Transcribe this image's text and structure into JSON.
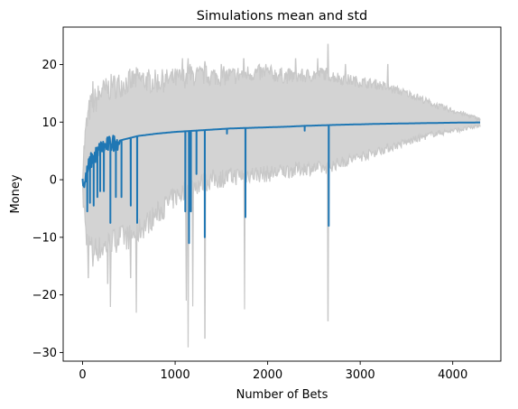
{
  "chart_data": {
    "type": "line",
    "title": "Simulations mean and std",
    "xlabel": "Number of Bets",
    "ylabel": "Money",
    "xlim": [
      -210,
      4520
    ],
    "ylim": [
      -31.5,
      26.5
    ],
    "xticks": [
      0,
      1000,
      2000,
      3000,
      4000
    ],
    "xtick_labels": [
      "0",
      "1000",
      "2000",
      "3000",
      "4000"
    ],
    "yticks": [
      -30,
      -20,
      -10,
      0,
      10,
      20
    ],
    "ytick_labels": [
      "−30",
      "−20",
      "−10",
      "0",
      "10",
      "20"
    ],
    "grid": false,
    "colors": {
      "mean": "#1f77b4",
      "band_fill": "#d3d3d3",
      "band_edge": "#c8c8c8"
    },
    "band": {
      "x": [
        0,
        20,
        40,
        60,
        80,
        100,
        150,
        200,
        300,
        400,
        500,
        600,
        800,
        1000,
        1200,
        1400,
        1600,
        1800,
        2000,
        2200,
        2400,
        2600,
        2800,
        3000,
        3200,
        3400,
        3600,
        3800,
        4000,
        4200,
        4300
      ],
      "upper": [
        2,
        6,
        9,
        11,
        12.5,
        13,
        14,
        15,
        16,
        16.5,
        17,
        17.5,
        17,
        17.5,
        18,
        18,
        18,
        18.5,
        18.5,
        18,
        18,
        18.5,
        17.5,
        17,
        16.5,
        15.5,
        14.5,
        13,
        12,
        11,
        10.5
      ],
      "lower": [
        -2,
        -6,
        -10,
        -11,
        -11.5,
        -12,
        -12,
        -12,
        -11,
        -10,
        -10,
        -9,
        -6,
        -3,
        -1,
        0,
        0.5,
        1,
        1,
        1.5,
        2,
        2,
        3,
        4,
        5,
        6,
        7,
        8,
        8.5,
        9,
        9.5
      ],
      "spikes_up": [
        [
          60,
          12
        ],
        [
          110,
          17
        ],
        [
          210,
          16
        ],
        [
          330,
          17
        ],
        [
          520,
          16
        ],
        [
          710,
          18
        ],
        [
          870,
          18
        ],
        [
          1080,
          21
        ],
        [
          1140,
          21
        ],
        [
          1160,
          20
        ],
        [
          1320,
          20.5
        ],
        [
          1500,
          20
        ],
        [
          1740,
          21
        ],
        [
          1980,
          20
        ],
        [
          2300,
          21
        ],
        [
          2540,
          21
        ],
        [
          2650,
          23.5
        ],
        [
          2840,
          20
        ],
        [
          3300,
          20
        ]
      ],
      "spikes_down": [
        [
          60,
          -17
        ],
        [
          110,
          -15
        ],
        [
          270,
          -18
        ],
        [
          300,
          -22
        ],
        [
          520,
          -17
        ],
        [
          580,
          -23
        ],
        [
          1120,
          -21
        ],
        [
          1140,
          -29
        ],
        [
          1190,
          -22
        ],
        [
          1320,
          -27.5
        ],
        [
          1750,
          -22.5
        ],
        [
          2650,
          -24.5
        ]
      ]
    },
    "series": [
      {
        "values": {
          "x": [
            0,
            20,
            40,
            60,
            80,
            100,
            150,
            200,
            300,
            400,
            500,
            600,
            700,
            800,
            1000,
            1200,
            1400,
            1600,
            1800,
            2000,
            2200,
            2400,
            2600,
            2800,
            3000,
            3200,
            3400,
            3600,
            3800,
            4000,
            4200,
            4300
          ],
          "y": [
            0,
            -1,
            0.5,
            2,
            3,
            3.5,
            4.5,
            5.5,
            6.2,
            6.8,
            7.2,
            7.6,
            7.8,
            8.0,
            8.3,
            8.5,
            8.7,
            8.9,
            9.0,
            9.1,
            9.2,
            9.35,
            9.45,
            9.55,
            9.62,
            9.7,
            9.75,
            9.8,
            9.85,
            9.9,
            9.93,
            9.95
          ]
        },
        "dips": [
          [
            50,
            -5.5
          ],
          [
            80,
            -4
          ],
          [
            120,
            -4.5
          ],
          [
            160,
            -3
          ],
          [
            190,
            -2
          ],
          [
            230,
            -2
          ],
          [
            300,
            -7.5
          ],
          [
            360,
            -3
          ],
          [
            420,
            -3
          ],
          [
            520,
            -4.5
          ],
          [
            590,
            -7.5
          ],
          [
            1110,
            -5.5
          ],
          [
            1150,
            -11
          ],
          [
            1170,
            -5.5
          ],
          [
            1230,
            1
          ],
          [
            1320,
            -10
          ],
          [
            1560,
            8
          ],
          [
            1760,
            -6.5
          ],
          [
            2400,
            8.5
          ],
          [
            2660,
            -8
          ]
        ]
      }
    ]
  }
}
